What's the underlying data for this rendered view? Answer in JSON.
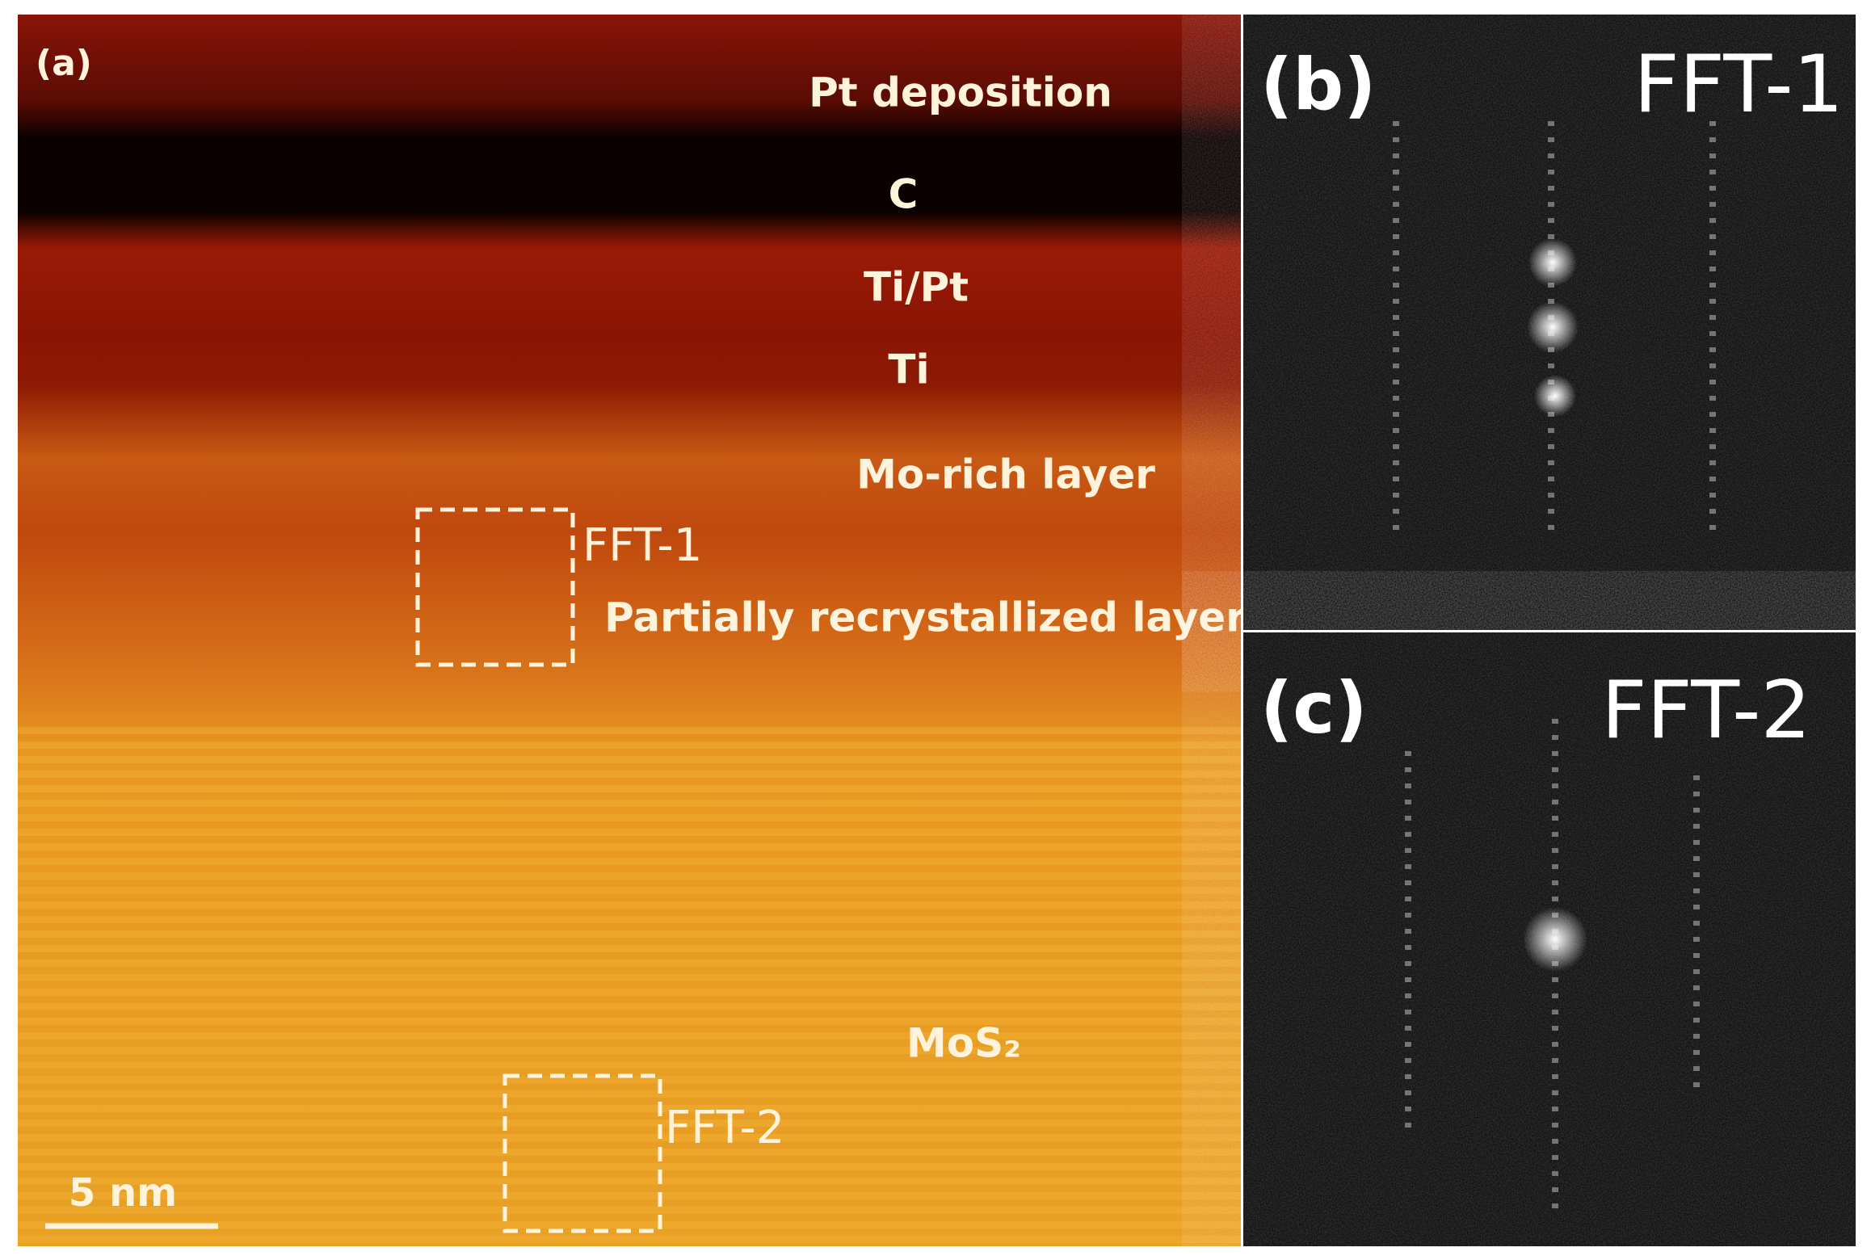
{
  "panel_a": {
    "label": "(a)",
    "layers": [
      "Pt deposition",
      "C",
      "Ti/Pt",
      "Ti",
      "Mo-rich layer",
      "Partially recrystallized layer",
      "MoS₂"
    ],
    "boxes": [
      "FFT-1",
      "FFT-2"
    ],
    "scale_bar": "5 nm"
  },
  "panel_b": {
    "label": "(b)",
    "title": "FFT-1"
  },
  "panel_c": {
    "label": "(c)",
    "title": "FFT-2"
  }
}
